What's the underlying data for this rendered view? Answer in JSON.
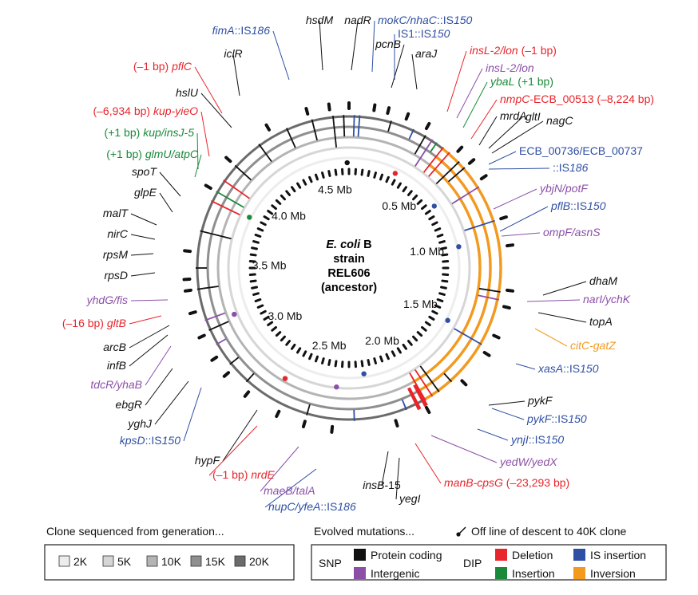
{
  "center": {
    "line1_italic": "E. coli",
    "line1_rest": " B",
    "line2": "strain",
    "line3": "REL606",
    "line4": "(ancestor)"
  },
  "mb_labels": [
    {
      "text": "0.5 Mb",
      "mb": 0.5
    },
    {
      "text": "1.0 Mb",
      "mb": 1.0
    },
    {
      "text": "1.5 Mb",
      "mb": 1.5
    },
    {
      "text": "2.0 Mb",
      "mb": 2.0
    },
    {
      "text": "2.5 Mb",
      "mb": 2.5
    },
    {
      "text": "3.0 Mb",
      "mb": 3.0
    },
    {
      "text": "3.5 Mb",
      "mb": 3.5
    },
    {
      "text": "4.0 Mb",
      "mb": 4.0
    },
    {
      "text": "4.5 Mb",
      "mb": 4.5
    }
  ],
  "ring_generations": [
    "20K",
    "15K",
    "10K",
    "5K",
    "2K"
  ],
  "gene_labels": [
    {
      "id": "hsdM",
      "parts": [
        {
          "t": "hsdM",
          "i": true
        }
      ],
      "color": "#111111"
    },
    {
      "id": "nadR",
      "parts": [
        {
          "t": "nadR",
          "i": true
        }
      ],
      "color": "#111111"
    },
    {
      "id": "fimA",
      "parts": [
        {
          "t": "fimA",
          "i": true
        },
        {
          "t": "::IS",
          "i": false
        },
        {
          "t": "186",
          "i": true
        }
      ],
      "color": "#2e4fa3"
    },
    {
      "id": "mokC",
      "parts": [
        {
          "t": "mokC/nhaC",
          "i": true
        },
        {
          "t": "::IS",
          "i": false
        },
        {
          "t": "150",
          "i": true
        }
      ],
      "color": "#2e4fa3"
    },
    {
      "id": "IS1",
      "parts": [
        {
          "t": "IS1",
          "i": false
        },
        {
          "t": "::IS",
          "i": false
        },
        {
          "t": "150",
          "i": true
        }
      ],
      "color": "#2e4fa3"
    },
    {
      "id": "pcnB",
      "parts": [
        {
          "t": "pcnB",
          "i": true
        }
      ],
      "color": "#111111"
    },
    {
      "id": "araJ",
      "parts": [
        {
          "t": "araJ",
          "i": true
        }
      ],
      "color": "#111111"
    },
    {
      "id": "insL2lon",
      "parts": [
        {
          "t": "insL-2/lon",
          "i": true
        },
        {
          "t": " (–1 bp)",
          "i": false
        }
      ],
      "color": "#e8252b"
    },
    {
      "id": "insL2lonP",
      "parts": [
        {
          "t": "insL-2/lon",
          "i": true
        }
      ],
      "color": "#8b4fa8"
    },
    {
      "id": "iclR",
      "parts": [
        {
          "t": "iclR",
          "i": true
        }
      ],
      "color": "#111111"
    },
    {
      "id": "pflC",
      "parts": [
        {
          "t": "(–1 bp) ",
          "i": false
        },
        {
          "t": "pflC",
          "i": true
        }
      ],
      "color": "#e8252b"
    },
    {
      "id": "ybaL",
      "parts": [
        {
          "t": "ybaL",
          "i": true
        },
        {
          "t": " (+1 bp)",
          "i": false
        }
      ],
      "color": "#1a8a3a"
    },
    {
      "id": "nmpC",
      "parts": [
        {
          "t": "nmpC",
          "i": true
        },
        {
          "t": "-ECB_00513 (–8,224 bp)",
          "i": false
        }
      ],
      "color": "#e8252b"
    },
    {
      "id": "hslU",
      "parts": [
        {
          "t": "hslU",
          "i": true
        }
      ],
      "color": "#111111"
    },
    {
      "id": "mrdA",
      "parts": [
        {
          "t": "mrdA",
          "i": true
        }
      ],
      "color": "#111111"
    },
    {
      "id": "gltI",
      "parts": [
        {
          "t": "gltI",
          "i": true
        }
      ],
      "color": "#111111"
    },
    {
      "id": "nagC",
      "parts": [
        {
          "t": "nagC",
          "i": true
        }
      ],
      "color": "#111111"
    },
    {
      "id": "kupyieO",
      "parts": [
        {
          "t": "(–6,934 bp) ",
          "i": false
        },
        {
          "t": "kup-yieO",
          "i": true
        }
      ],
      "color": "#e8252b"
    },
    {
      "id": "kupinsJ",
      "parts": [
        {
          "t": "(+1 bp) ",
          "i": false
        },
        {
          "t": "kup/insJ-5",
          "i": true
        }
      ],
      "color": "#1a8a3a"
    },
    {
      "id": "glmU",
      "parts": [
        {
          "t": "(+1 bp) ",
          "i": false
        },
        {
          "t": "glmU/atpC",
          "i": true
        }
      ],
      "color": "#1a8a3a"
    },
    {
      "id": "ECB736",
      "parts": [
        {
          "t": "ECB_00736/ECB_00737",
          "i": false
        }
      ],
      "color": "#2e4fa3"
    },
    {
      "id": "ECB736b",
      "parts": [
        {
          "t": "::IS",
          "i": false
        },
        {
          "t": "186",
          "i": true
        }
      ],
      "color": "#2e4fa3"
    },
    {
      "id": "spoT",
      "parts": [
        {
          "t": "spoT",
          "i": true
        }
      ],
      "color": "#111111"
    },
    {
      "id": "ybjN",
      "parts": [
        {
          "t": "ybjN/potF",
          "i": true
        }
      ],
      "color": "#8b4fa8"
    },
    {
      "id": "glpE",
      "parts": [
        {
          "t": "glpE",
          "i": true
        }
      ],
      "color": "#111111"
    },
    {
      "id": "pflB",
      "parts": [
        {
          "t": "pflB",
          "i": true
        },
        {
          "t": "::IS",
          "i": false
        },
        {
          "t": "150",
          "i": true
        }
      ],
      "color": "#2e4fa3"
    },
    {
      "id": "malT",
      "parts": [
        {
          "t": "malT",
          "i": true
        }
      ],
      "color": "#111111"
    },
    {
      "id": "ompF",
      "parts": [
        {
          "t": "ompF/asnS",
          "i": true
        }
      ],
      "color": "#8b4fa8"
    },
    {
      "id": "nirC",
      "parts": [
        {
          "t": "nirC",
          "i": true
        }
      ],
      "color": "#111111"
    },
    {
      "id": "rpsM",
      "parts": [
        {
          "t": "rpsM",
          "i": true
        }
      ],
      "color": "#111111"
    },
    {
      "id": "rpsD",
      "parts": [
        {
          "t": "rpsD",
          "i": true
        }
      ],
      "color": "#111111"
    },
    {
      "id": "dhaM",
      "parts": [
        {
          "t": "dhaM",
          "i": true
        }
      ],
      "color": "#111111"
    },
    {
      "id": "yhdG",
      "parts": [
        {
          "t": "yhdG/fis",
          "i": true
        }
      ],
      "color": "#8b4fa8"
    },
    {
      "id": "narI",
      "parts": [
        {
          "t": "narI/ychK",
          "i": true
        }
      ],
      "color": "#8b4fa8"
    },
    {
      "id": "gltB",
      "parts": [
        {
          "t": "(–16 bp) ",
          "i": false
        },
        {
          "t": "gltB",
          "i": true
        }
      ],
      "color": "#e8252b"
    },
    {
      "id": "topA",
      "parts": [
        {
          "t": "topA",
          "i": true
        }
      ],
      "color": "#111111"
    },
    {
      "id": "arcB",
      "parts": [
        {
          "t": "arcB",
          "i": true
        }
      ],
      "color": "#111111"
    },
    {
      "id": "citC",
      "parts": [
        {
          "t": "citC-gatZ",
          "i": true
        }
      ],
      "color": "#f39a1e"
    },
    {
      "id": "infB",
      "parts": [
        {
          "t": "infB",
          "i": true
        }
      ],
      "color": "#111111"
    },
    {
      "id": "tdcR",
      "parts": [
        {
          "t": "tdcR/yhaB",
          "i": true
        }
      ],
      "color": "#8b4fa8"
    },
    {
      "id": "xasA",
      "parts": [
        {
          "t": "xasA",
          "i": true
        },
        {
          "t": "::IS",
          "i": false
        },
        {
          "t": "150",
          "i": true
        }
      ],
      "color": "#2e4fa3"
    },
    {
      "id": "ebgR",
      "parts": [
        {
          "t": "ebgR",
          "i": true
        }
      ],
      "color": "#111111"
    },
    {
      "id": "pykF",
      "parts": [
        {
          "t": "pykF",
          "i": true
        }
      ],
      "color": "#111111"
    },
    {
      "id": "yghJ",
      "parts": [
        {
          "t": "yghJ",
          "i": true
        }
      ],
      "color": "#111111"
    },
    {
      "id": "pykFIS",
      "parts": [
        {
          "t": "pykF",
          "i": true
        },
        {
          "t": "::IS",
          "i": false
        },
        {
          "t": "150",
          "i": true
        }
      ],
      "color": "#2e4fa3"
    },
    {
      "id": "kpsD",
      "parts": [
        {
          "t": "kpsD",
          "i": true
        },
        {
          "t": "::IS",
          "i": false
        },
        {
          "t": "150",
          "i": true
        }
      ],
      "color": "#2e4fa3"
    },
    {
      "id": "ynjI",
      "parts": [
        {
          "t": "ynjI",
          "i": true
        },
        {
          "t": "::IS",
          "i": false
        },
        {
          "t": "150",
          "i": true
        }
      ],
      "color": "#2e4fa3"
    },
    {
      "id": "hypF",
      "parts": [
        {
          "t": "hypF",
          "i": true
        }
      ],
      "color": "#111111"
    },
    {
      "id": "yedW",
      "parts": [
        {
          "t": "yedW/yedX",
          "i": true
        }
      ],
      "color": "#8b4fa8"
    },
    {
      "id": "nrdE",
      "parts": [
        {
          "t": "(–1 bp) ",
          "i": false
        },
        {
          "t": "nrdE",
          "i": true
        }
      ],
      "color": "#e8252b"
    },
    {
      "id": "manB",
      "parts": [
        {
          "t": "manB-cpsG",
          "i": true
        },
        {
          "t": " (–23,293 bp)",
          "i": false
        }
      ],
      "color": "#e8252b"
    },
    {
      "id": "maeB",
      "parts": [
        {
          "t": "maeB/talA",
          "i": true
        }
      ],
      "color": "#8b4fa8"
    },
    {
      "id": "insB15",
      "parts": [
        {
          "t": "insB",
          "i": true
        },
        {
          "t": "-15",
          "i": false
        }
      ],
      "color": "#111111"
    },
    {
      "id": "yegI",
      "parts": [
        {
          "t": "yegI",
          "i": true
        }
      ],
      "color": "#111111"
    },
    {
      "id": "nupC",
      "parts": [
        {
          "t": "nupC/yfeA",
          "i": true
        },
        {
          "t": "::IS",
          "i": false
        },
        {
          "t": "186",
          "i": true
        }
      ],
      "color": "#2e4fa3"
    }
  ],
  "legend_left": {
    "title": "Clone sequenced from generation...",
    "items": [
      {
        "label": "2K",
        "color": "#ededed"
      },
      {
        "label": "5K",
        "color": "#d6d6d6"
      },
      {
        "label": "10K",
        "color": "#b4b4b4"
      },
      {
        "label": "15K",
        "color": "#8f8f8f"
      },
      {
        "label": "20K",
        "color": "#6b6b6b"
      }
    ]
  },
  "legend_right": {
    "title": "Evolved mutations...",
    "descent_note": "Off line of descent to 40K clone",
    "snp_label": "SNP",
    "dip_label": "DIP",
    "items": [
      {
        "label": "Protein coding",
        "color": "#111111"
      },
      {
        "label": "Intergenic",
        "color": "#8b4fa8"
      },
      {
        "label": "Deletion",
        "color": "#e8252b"
      },
      {
        "label": "Insertion",
        "color": "#1a8a3a"
      },
      {
        "label": "IS insertion",
        "color": "#2e4fa3"
      },
      {
        "label": "Inversion",
        "color": "#f39a1e"
      }
    ]
  },
  "colors": {
    "protein_coding": "#111111",
    "intergenic": "#8b4fa8",
    "deletion": "#e8252b",
    "insertion": "#1a8a3a",
    "is_insertion": "#2e4fa3",
    "inversion": "#f39a1e"
  }
}
